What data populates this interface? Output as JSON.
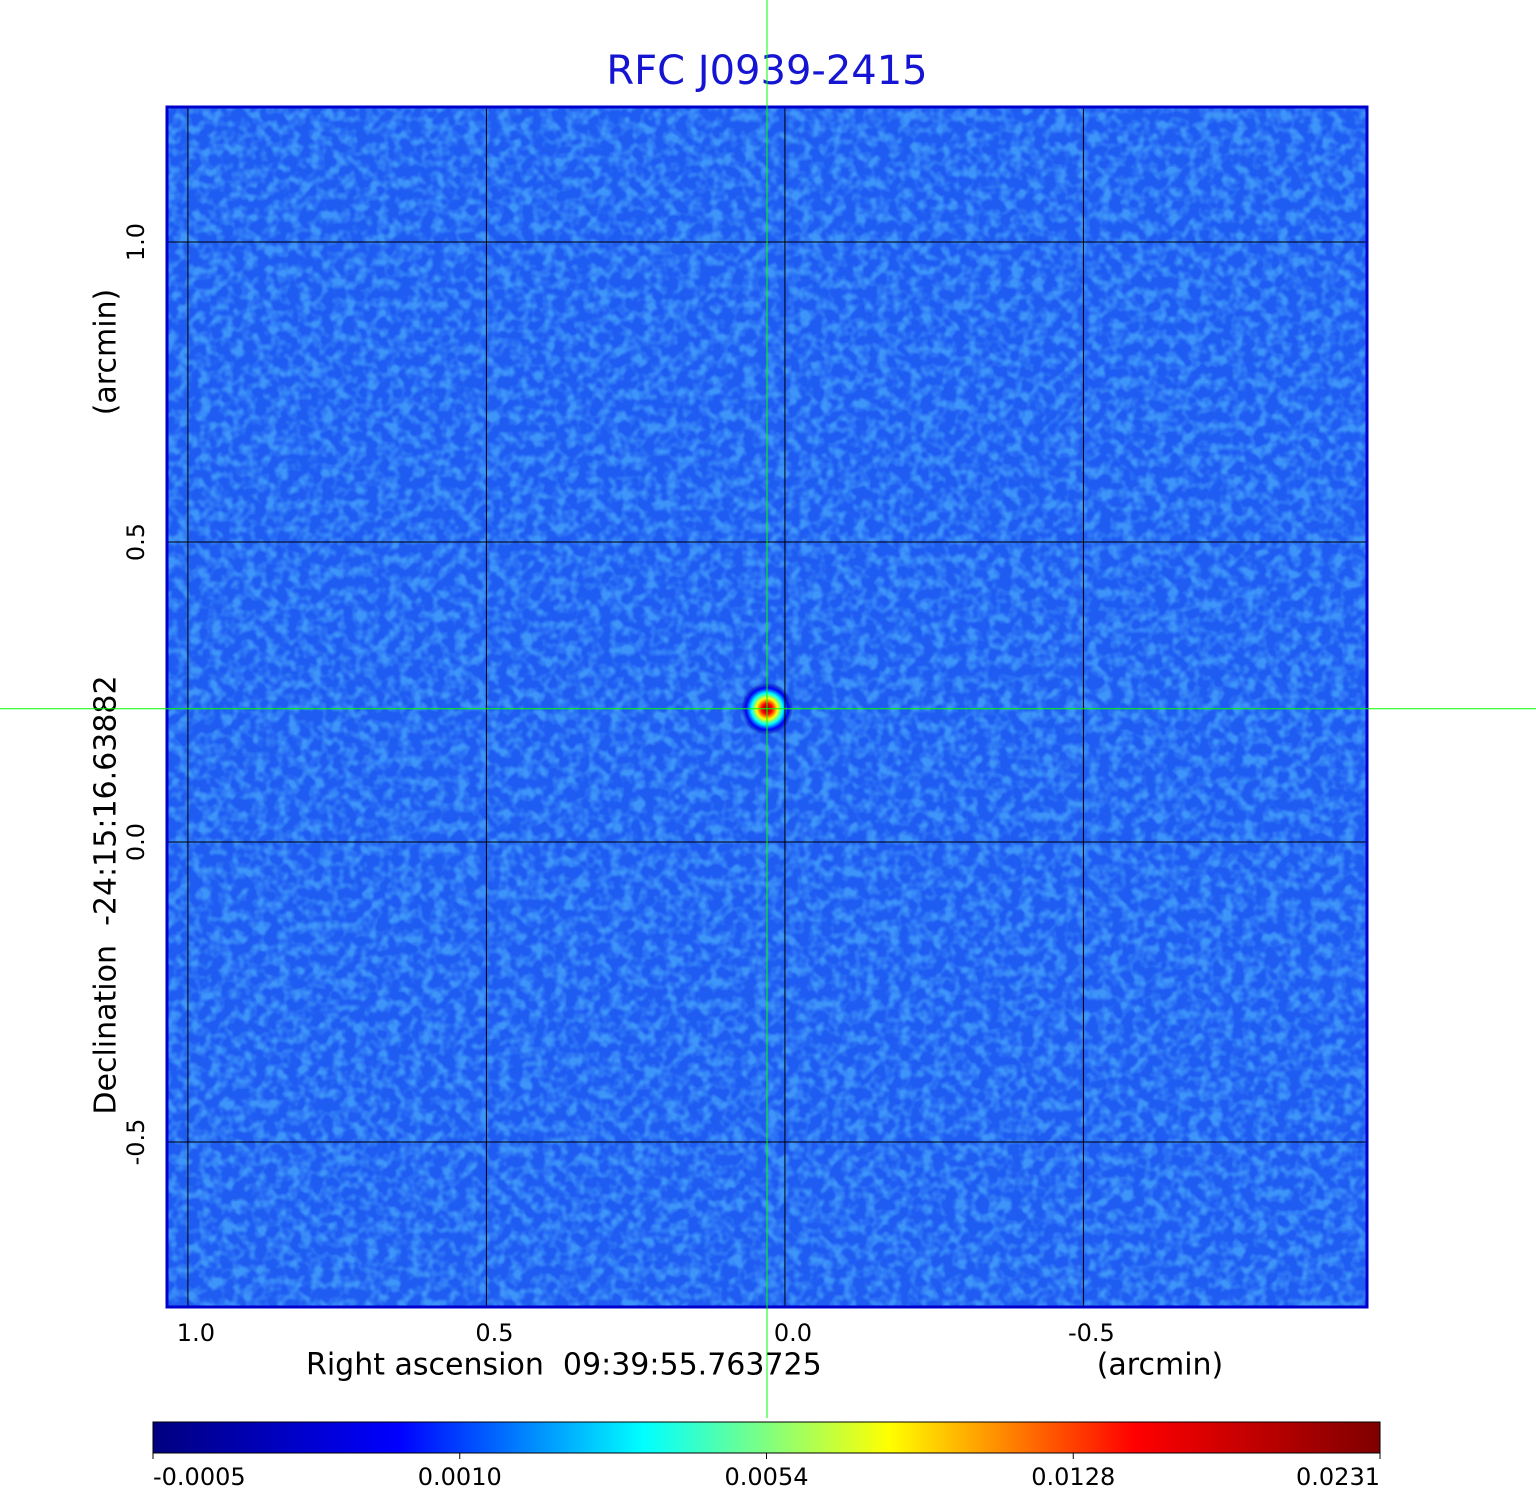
{
  "chart_data": {
    "type": "image",
    "title": "RFC J0939-2415",
    "xlabel": "Right ascension  09:39:55.763725",
    "xunit": "(arcmin)",
    "ylabel": "Declination  -24:15:16.63882",
    "yunit": "(arcmin)",
    "xlim": [
      1.035,
      -0.975
    ],
    "ylim": [
      -0.775,
      1.225
    ],
    "xticks": [
      {
        "value": 1,
        "label": "1.0"
      },
      0.5,
      {
        "value": 0,
        "label": "0.0"
      },
      -0.5
    ],
    "yticks": [
      -0.5,
      {
        "value": 0,
        "label": "0.0"
      },
      0.5,
      {
        "value": 1,
        "label": "1.0"
      }
    ],
    "grid": true,
    "background_color": "#1f5cf2",
    "colormap": [
      "#00007f",
      "#0000ff",
      "#00ffff",
      "#ffff00",
      "#ff0000",
      "#7f0000"
    ],
    "colorbar_ticks": [
      -0.0005,
      {
        "value": 0.001,
        "label": "0.0010"
      },
      0.0054,
      0.0128,
      0.0231
    ],
    "crosshair": {
      "x": 0.03,
      "y": 0.222,
      "color": "#00ff00"
    }
  }
}
